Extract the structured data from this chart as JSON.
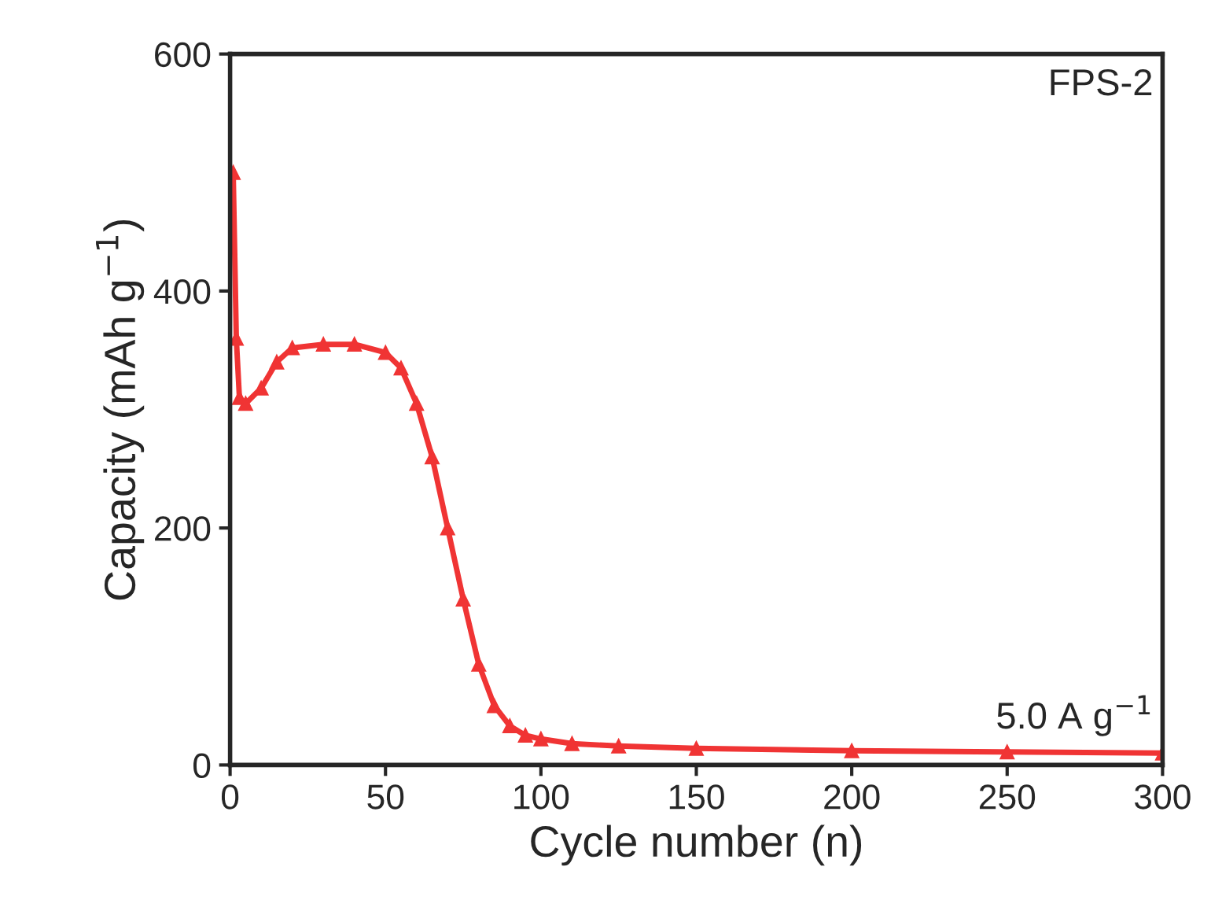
{
  "chart_data": {
    "type": "line",
    "xlabel": "Cycle number (n)",
    "ylabel": "Capacity (mAh g$^{−1}$)",
    "x": [
      1,
      2,
      3,
      5,
      10,
      15,
      20,
      30,
      40,
      50,
      55,
      60,
      65,
      70,
      75,
      80,
      85,
      90,
      95,
      100,
      110,
      125,
      150,
      200,
      250,
      300
    ],
    "series": [
      {
        "color": "#f03434",
        "values": [
          500,
          360,
          310,
          305,
          318,
          340,
          352,
          355,
          355,
          348,
          335,
          305,
          260,
          200,
          140,
          85,
          50,
          33,
          25,
          22,
          18,
          16,
          14,
          12,
          11,
          10
        ]
      }
    ],
    "xlim": [
      0,
      300
    ],
    "xticks": [
      0,
      50,
      100,
      150,
      200,
      250,
      300
    ],
    "ylim": [
      0,
      600
    ],
    "yticks": [
      0,
      200,
      400,
      600
    ],
    "marker": "triangle",
    "line_style": "solid",
    "grid": false,
    "legend": false,
    "annotations": [
      "FPS-2",
      "5.0 A g$^{−1}$"
    ]
  }
}
